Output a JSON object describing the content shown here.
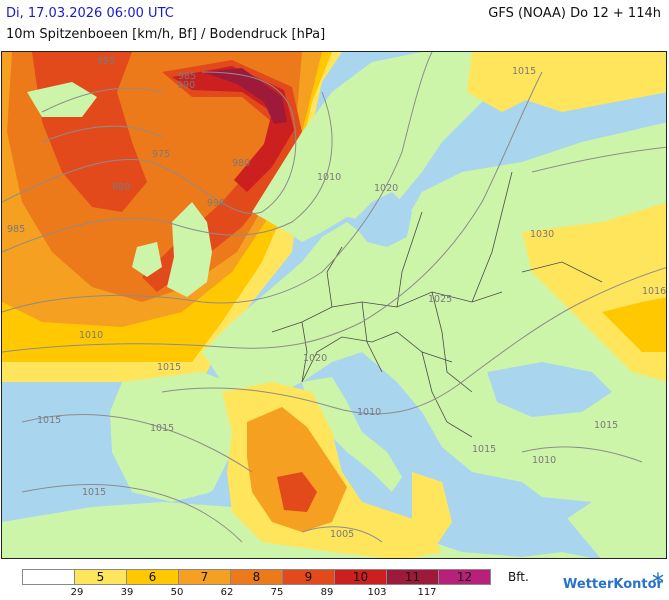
{
  "header": {
    "date": "Di, 17.03.2026 06:00 UTC",
    "title": "10m Spitzenboeen [km/h, Bf] / Bodendruck [hPa]",
    "model": "GFS (NOAA) Do 12 + 114h"
  },
  "map": {
    "isobar_labels": [
      "995",
      "985",
      "990",
      "975",
      "980",
      "980",
      "985",
      "990",
      "1010",
      "1020",
      "1015",
      "1030",
      "1025",
      "1016",
      "1010",
      "1015",
      "1020",
      "1015",
      "1010",
      "1015",
      "1015",
      "1015",
      "1010",
      "1015",
      "1005"
    ],
    "colors": {
      "sea": "#a9d6ee",
      "land": "#cdf5a9",
      "contour": "#8c8c8c",
      "border": "#4a4a4a"
    }
  },
  "legend": {
    "unit": "Bft.",
    "bins": [
      {
        "label": "",
        "color": "#ffffff"
      },
      {
        "label": "5",
        "color": "#ffe55c"
      },
      {
        "label": "6",
        "color": "#ffc800"
      },
      {
        "label": "7",
        "color": "#f5a020"
      },
      {
        "label": "8",
        "color": "#ec7a1a"
      },
      {
        "label": "9",
        "color": "#e24a1c"
      },
      {
        "label": "10",
        "color": "#cc1f1f"
      },
      {
        "label": "11",
        "color": "#9e1a3a"
      },
      {
        "label": "12",
        "color": "#b8207a"
      }
    ],
    "ticks": [
      "29",
      "39",
      "50",
      "62",
      "75",
      "89",
      "103",
      "117"
    ]
  },
  "brand": {
    "name": "WetterKontor",
    "icon": "snowflake-icon"
  }
}
